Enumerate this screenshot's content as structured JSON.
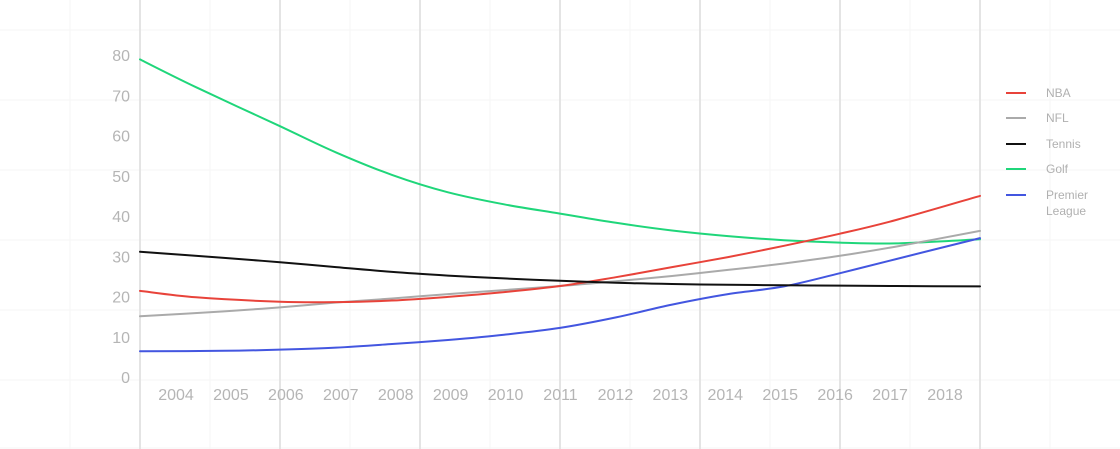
{
  "chart_data": {
    "type": "line",
    "title": "",
    "xlabel": "",
    "ylabel": "",
    "categories": [
      "2004",
      "2005",
      "2006",
      "2007",
      "2008",
      "2009",
      "2010",
      "2011",
      "2012",
      "2013",
      "2014",
      "2015",
      "2016",
      "2017",
      "2018"
    ],
    "x_range": [
      2003.5,
      2018.5
    ],
    "ylim": [
      0,
      80
    ],
    "yticks": [
      0,
      10,
      20,
      30,
      40,
      50,
      60,
      70,
      80
    ],
    "grid": true,
    "legend_position": "right",
    "series": [
      {
        "name": "NBA",
        "color": "#e8433a",
        "points": [
          [
            2003.5,
            21.4
          ],
          [
            2004.5,
            19.8
          ],
          [
            2006,
            18.7
          ],
          [
            2007,
            18.6
          ],
          [
            2008,
            19.0
          ],
          [
            2009,
            19.9
          ],
          [
            2010,
            21.1
          ],
          [
            2011,
            22.6
          ],
          [
            2012,
            24.8
          ],
          [
            2013,
            27.3
          ],
          [
            2014,
            29.8
          ],
          [
            2015,
            32.6
          ],
          [
            2016,
            35.6
          ],
          [
            2017,
            39.0
          ],
          [
            2018.5,
            45.0
          ]
        ]
      },
      {
        "name": "NFL",
        "color": "#aaaaaa",
        "points": [
          [
            2003.5,
            15.1
          ],
          [
            2005,
            16.3
          ],
          [
            2006,
            17.3
          ],
          [
            2007,
            18.5
          ],
          [
            2008,
            19.5
          ],
          [
            2009,
            20.6
          ],
          [
            2010,
            21.6
          ],
          [
            2011,
            22.6
          ],
          [
            2012,
            23.8
          ],
          [
            2013,
            25.1
          ],
          [
            2014,
            26.6
          ],
          [
            2015,
            28.2
          ],
          [
            2016,
            30.1
          ],
          [
            2017,
            32.4
          ],
          [
            2018.5,
            36.3
          ]
        ]
      },
      {
        "name": "Tennis",
        "color": "#111111",
        "points": [
          [
            2003.5,
            31.1
          ],
          [
            2005,
            29.6
          ],
          [
            2006,
            28.5
          ],
          [
            2007,
            27.3
          ],
          [
            2008,
            26.1
          ],
          [
            2009,
            25.2
          ],
          [
            2010,
            24.5
          ],
          [
            2011,
            23.9
          ],
          [
            2012,
            23.4
          ],
          [
            2013,
            23.1
          ],
          [
            2014,
            22.9
          ],
          [
            2015,
            22.8
          ],
          [
            2016,
            22.7
          ],
          [
            2017,
            22.6
          ],
          [
            2018.5,
            22.5
          ]
        ]
      },
      {
        "name": "Golf",
        "color": "#1fd67a",
        "points": [
          [
            2003.5,
            78.9
          ],
          [
            2004.5,
            72.0
          ],
          [
            2006,
            62.3
          ],
          [
            2007,
            55.8
          ],
          [
            2008,
            50.2
          ],
          [
            2009,
            45.9
          ],
          [
            2010,
            42.9
          ],
          [
            2011,
            40.6
          ],
          [
            2012,
            38.3
          ],
          [
            2013,
            36.4
          ],
          [
            2014,
            35.0
          ],
          [
            2015,
            34.0
          ],
          [
            2016,
            33.4
          ],
          [
            2017,
            33.2
          ],
          [
            2018.5,
            34.2
          ]
        ]
      },
      {
        "name": "Premier League",
        "color": "#4356e0",
        "points": [
          [
            2003.5,
            6.4
          ],
          [
            2005,
            6.5
          ],
          [
            2006,
            6.8
          ],
          [
            2007,
            7.3
          ],
          [
            2008,
            8.2
          ],
          [
            2009,
            9.2
          ],
          [
            2010,
            10.5
          ],
          [
            2011,
            12.2
          ],
          [
            2012,
            14.8
          ],
          [
            2013,
            18.0
          ],
          [
            2014,
            20.6
          ],
          [
            2015,
            22.5
          ],
          [
            2016,
            25.8
          ],
          [
            2017,
            29.3
          ],
          [
            2018.5,
            34.5
          ]
        ]
      }
    ]
  }
}
